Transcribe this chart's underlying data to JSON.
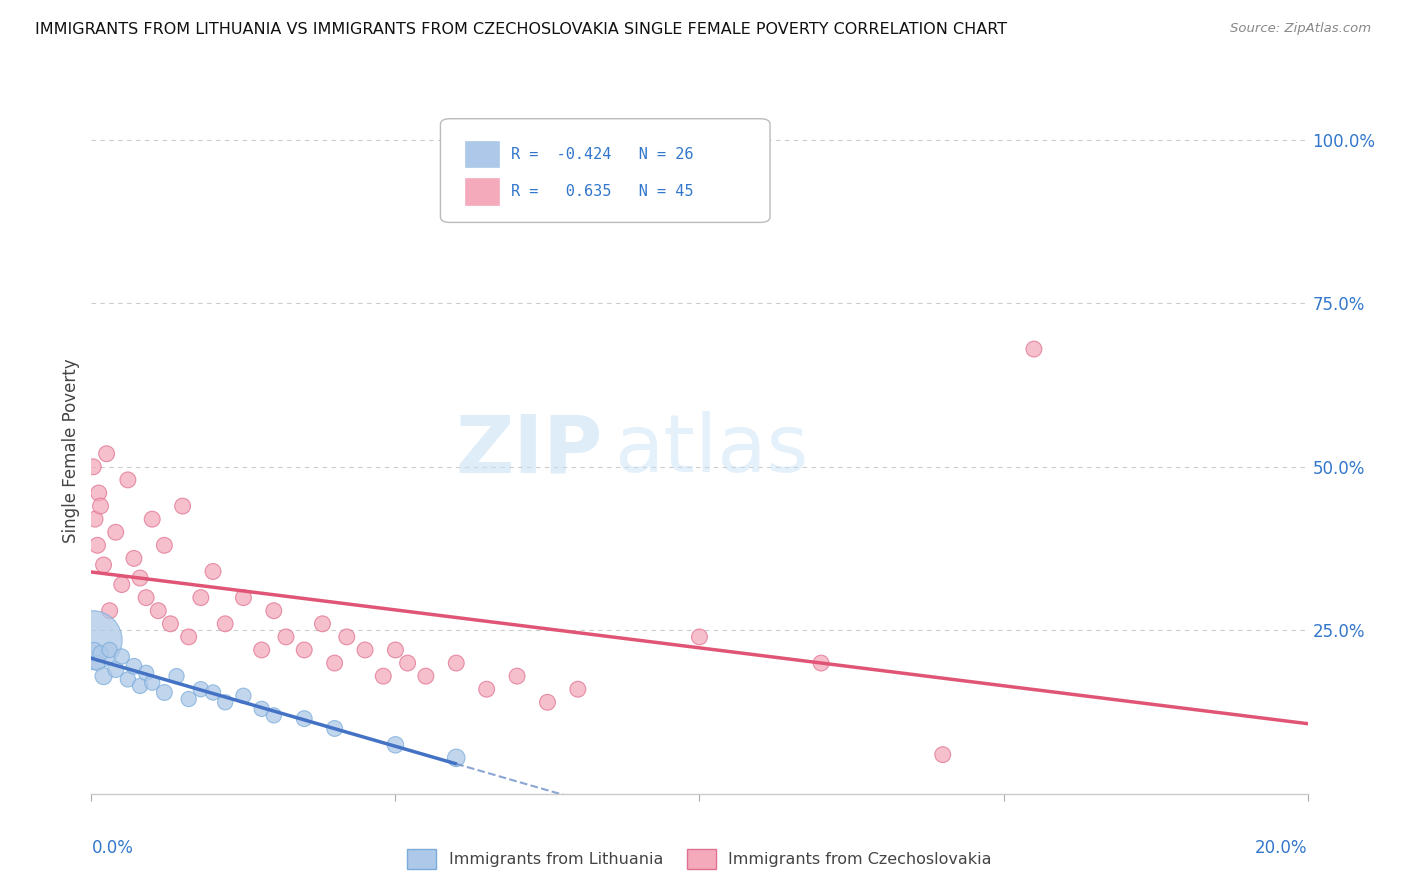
{
  "title": "IMMIGRANTS FROM LITHUANIA VS IMMIGRANTS FROM CZECHOSLOVAKIA SINGLE FEMALE POVERTY CORRELATION CHART",
  "source": "Source: ZipAtlas.com",
  "ylabel": "Single Female Poverty",
  "yticks": [
    0.0,
    0.25,
    0.5,
    0.75,
    1.0
  ],
  "ytick_labels": [
    "",
    "25.0%",
    "50.0%",
    "75.0%",
    "100.0%"
  ],
  "watermark_part1": "ZIP",
  "watermark_part2": "atlas",
  "background_color": "#ffffff",
  "grid_color": "#cccccc",
  "blue_color": "#adc8e8",
  "blue_edge": "#7aacda",
  "pink_color": "#f4aabb",
  "pink_edge": "#e07090",
  "lith_R": -0.424,
  "lith_N": 26,
  "czech_R": 0.635,
  "czech_N": 45,
  "xlim": [
    0.0,
    0.2
  ],
  "ylim": [
    0.0,
    1.05
  ],
  "lith_color_legend": "#adc8e8",
  "czech_color_legend": "#f4aabb",
  "legend_label_lith": "Immigrants from Lithuania",
  "legend_label_czech": "Immigrants from Czechoslovakia"
}
